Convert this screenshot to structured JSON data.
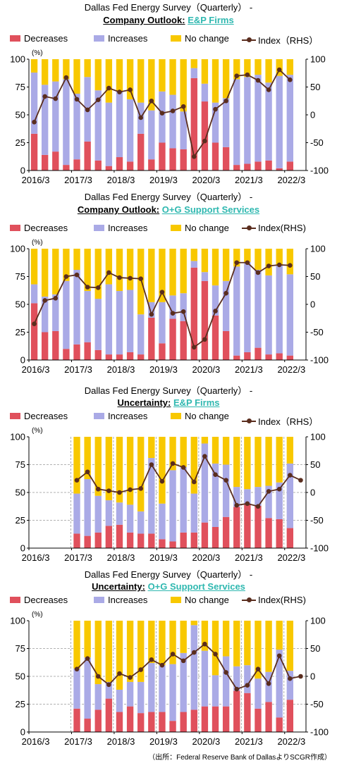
{
  "legend": {
    "decreases": "Decreases",
    "increases": "Increases",
    "no_change": "No change",
    "index_a": "Index（RHS）",
    "index_b": "Index(RHS)"
  },
  "colors": {
    "decreases": "#e0505c",
    "increases": "#aaaae6",
    "no_change": "#f8c800",
    "index": "#5a2d1e",
    "accent_text": "#2fb8b0"
  },
  "footer": "（出所：Federal Reserve Bank of DallasよりSCGR作成）",
  "chart_data": [
    {
      "type": "bar",
      "title": "Dallas Fed Energy Survey（Quarterly） -",
      "subtitle_prefix": "Company Outlook:",
      "subtitle_segment": "E&P Firms",
      "unit_left": "(%)",
      "ylim": [
        0,
        100
      ],
      "ylim_right": [
        -100,
        100
      ],
      "yticks_left": [
        "0",
        "25",
        "50",
        "75",
        "100"
      ],
      "yticks_right": [
        "-100",
        "-50",
        "0",
        "50",
        "100"
      ],
      "x_tick_labels": [
        "2016/3",
        "2017/3",
        "2018/3",
        "2019/3",
        "2020/3",
        "2021/3",
        "2022/3"
      ],
      "x_tick_positions": [
        0,
        4,
        8,
        12,
        16,
        20,
        24
      ],
      "n_periods": 26,
      "grid": false,
      "decreases": [
        33,
        14,
        17,
        5,
        10,
        26,
        9,
        4,
        12,
        8,
        33,
        10,
        25,
        20,
        19,
        83,
        62,
        25,
        21,
        5,
        6,
        8,
        9,
        2,
        8,
        0
      ],
      "increases": [
        55,
        63,
        63,
        77,
        59,
        58,
        63,
        57,
        59,
        56,
        28,
        44,
        46,
        48,
        34,
        9,
        16,
        36,
        44,
        77,
        78,
        78,
        70,
        83,
        78,
        0
      ],
      "index": [
        -13,
        33,
        29,
        67,
        28,
        9,
        27,
        48,
        41,
        45,
        -5,
        25,
        3,
        7,
        15,
        -75,
        -47,
        10,
        25,
        70,
        72,
        62,
        45,
        81,
        63
      ],
      "series_names": [
        "Decreases",
        "Increases",
        "No change",
        "Index（RHS）"
      ]
    },
    {
      "type": "bar",
      "title": "Dallas Fed Energy Survey（Quarterly） -",
      "subtitle_prefix": "Company Outlook:",
      "subtitle_segment": "O+G Support Services",
      "unit_left": "(%)",
      "ylim": [
        0,
        100
      ],
      "ylim_right": [
        -100,
        100
      ],
      "yticks_left": [
        "0",
        "25",
        "50",
        "75",
        "100"
      ],
      "yticks_right": [
        "-100",
        "-50",
        "0",
        "50",
        "100"
      ],
      "x_tick_labels": [
        "2016/3",
        "2017/3",
        "2018/3",
        "2019/3",
        "2020/3",
        "2021/3",
        "2022/3"
      ],
      "x_tick_positions": [
        0,
        4,
        8,
        12,
        16,
        20,
        24
      ],
      "n_periods": 26,
      "grid": false,
      "decreases": [
        51,
        25,
        26,
        10,
        14,
        16,
        9,
        5,
        5,
        7,
        5,
        38,
        15,
        37,
        35,
        83,
        71,
        40,
        26,
        4,
        7,
        11,
        5,
        6,
        4,
        0
      ],
      "increases": [
        17,
        32,
        33,
        61,
        67,
        46,
        46,
        63,
        57,
        56,
        36,
        14,
        37,
        21,
        25,
        6,
        8,
        27,
        45,
        80,
        81,
        70,
        71,
        79,
        73,
        0
      ],
      "index": [
        -35,
        7,
        11,
        50,
        53,
        31,
        30,
        57,
        48,
        47,
        46,
        -18,
        22,
        -16,
        -13,
        -77,
        -63,
        -12,
        20,
        75,
        75,
        57,
        69,
        71,
        70
      ],
      "series_names": [
        "Decreases",
        "Increases",
        "No change",
        "Index(RHS)"
      ]
    },
    {
      "type": "bar",
      "title": "Dallas Fed Energy Survey（Quarterly） -",
      "subtitle_prefix": "Uncertainty:",
      "subtitle_segment": "E&P Firms",
      "unit_left": "(%)",
      "ylim": [
        0,
        100
      ],
      "ylim_right": [
        -100,
        100
      ],
      "yticks_left": [
        "0",
        "25",
        "50",
        "75",
        "100"
      ],
      "yticks_right": [
        "-100",
        "-50",
        "0",
        "50",
        "100"
      ],
      "x_tick_labels": [
        "2016/3",
        "2017/3",
        "2018/3",
        "2019/3",
        "2020/3",
        "2021/3",
        "2022/3"
      ],
      "x_tick_positions": [
        0,
        4,
        8,
        12,
        16,
        20,
        24
      ],
      "n_periods": 26,
      "grid": true,
      "decreases": [
        null,
        null,
        null,
        null,
        13,
        11,
        14,
        20,
        21,
        14,
        13,
        13,
        8,
        6,
        14,
        14,
        23,
        19,
        28,
        37,
        39,
        38,
        27,
        26,
        18,
        0
      ],
      "increases": [
        null,
        null,
        null,
        null,
        36,
        51,
        33,
        23,
        20,
        25,
        20,
        68,
        32,
        64,
        59,
        35,
        71,
        57,
        47,
        18,
        14,
        17,
        29,
        33,
        58,
        0
      ],
      "index": [
        null,
        null,
        null,
        null,
        22,
        37,
        6,
        3,
        0,
        5,
        7,
        50,
        20,
        52,
        45,
        19,
        65,
        32,
        22,
        -23,
        -20,
        -25,
        2,
        6,
        31,
        22
      ],
      "series_names": [
        "Decreases",
        "Increases",
        "No change",
        "Index（RHS）"
      ]
    },
    {
      "type": "bar",
      "title": "Dallas Fed Energy Survey（Quarterly） -",
      "subtitle_prefix": "Uncertainty:",
      "subtitle_segment": "O+G Support Services",
      "unit_left": "(%)",
      "ylim": [
        0,
        100
      ],
      "ylim_right": [
        -100,
        100
      ],
      "yticks_left": [
        "0",
        "25",
        "50",
        "75",
        "100"
      ],
      "yticks_right": [
        "-100",
        "-50",
        "0",
        "50",
        "100"
      ],
      "x_tick_labels": [
        "2016/3",
        "2017/3",
        "2018/3",
        "2019/3",
        "2020/3",
        "2021/3",
        "2022/3"
      ],
      "x_tick_positions": [
        0,
        4,
        8,
        12,
        16,
        20,
        24
      ],
      "n_periods": 26,
      "grid": true,
      "decreases": [
        null,
        null,
        null,
        null,
        21,
        12,
        20,
        30,
        18,
        23,
        17,
        18,
        18,
        10,
        18,
        20,
        23,
        23,
        23,
        37,
        35,
        21,
        27,
        13,
        29,
        0
      ],
      "increases": [
        null,
        null,
        null,
        null,
        36,
        55,
        23,
        15,
        20,
        22,
        28,
        44,
        42,
        51,
        53,
        76,
        50,
        28,
        45,
        22,
        25,
        27,
        27,
        61,
        26,
        0
      ],
      "index": [
        null,
        null,
        null,
        null,
        13,
        32,
        0,
        -15,
        5,
        -2,
        12,
        30,
        20,
        40,
        28,
        43,
        58,
        40,
        7,
        -23,
        -16,
        13,
        -13,
        37,
        -4,
        0
      ],
      "series_names": [
        "Decreases",
        "Increases",
        "No change",
        "Index(RHS)"
      ]
    }
  ]
}
